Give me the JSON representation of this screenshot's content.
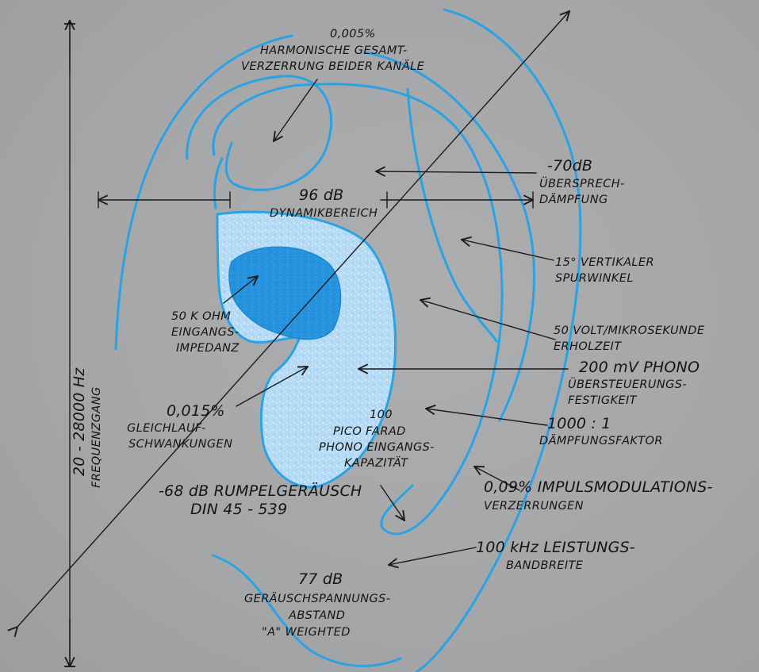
{
  "colors": {
    "ear_outline": "#29a3e6",
    "canal_light": "#b5daf5",
    "canal_dark": "#2592de",
    "ink": "#141414",
    "background": "#a7a8aa"
  },
  "labels": {
    "thd_value": "0,005%",
    "thd_line1": "HARMONISCHE GESAMT-",
    "thd_line2": "VERZERRUNG BEIDER KANÄLE",
    "crosstalk_value": "-70dB",
    "crosstalk_line1": "ÜBERSPRECH-",
    "crosstalk_line2": "DÄMPFUNG",
    "dynamic_value": "96 dB",
    "dynamic_label": "DYNAMIKBEREICH",
    "tracking_line1": "15° VERTIKALER",
    "tracking_line2": "SPURWINKEL",
    "impedance_value": "50 K OHM",
    "impedance_line1": "EINGANGS-",
    "impedance_line2": "IMPEDANZ",
    "recovery_line1": "50 VOLT/MIKROSEKUNDE",
    "recovery_line2": "ERHOLZEIT",
    "phono_value": "200 mV PHONO",
    "phono_line1": "ÜBERSTEUERUNGS-",
    "phono_line2": "FESTIGKEIT",
    "wow_value": "0,015%",
    "wow_line1": "GLEICHLAUF-",
    "wow_line2": "SCHWANKUNGEN",
    "cap_value": "100",
    "cap_line1": "PICO FARAD",
    "cap_line2": "PHONO EINGANGS-",
    "cap_line3": "KAPAZITÄT",
    "damping_value": "1000 : 1",
    "damping_label": "DÄMPFUNGSFAKTOR",
    "rumble_line1": "-68 dB RUMPELGERÄUSCH",
    "rumble_line2": "DIN 45 - 539",
    "tim_line1": "0,09% IMPULSMODULATIONS-",
    "tim_line2": "VERZERRUNGEN",
    "power_line1": "100 kHz LEISTUNGS-",
    "power_line2": "BANDBREITE",
    "snr_value": "77 dB",
    "snr_line1": "GERÄUSCHSPANNUNGS-",
    "snr_line2": "ABSTAND",
    "snr_line3": "\"A\" WEIGHTED",
    "freq_line1": "20 - 28000 Hz",
    "freq_line2": "FREQUENZGANG"
  }
}
